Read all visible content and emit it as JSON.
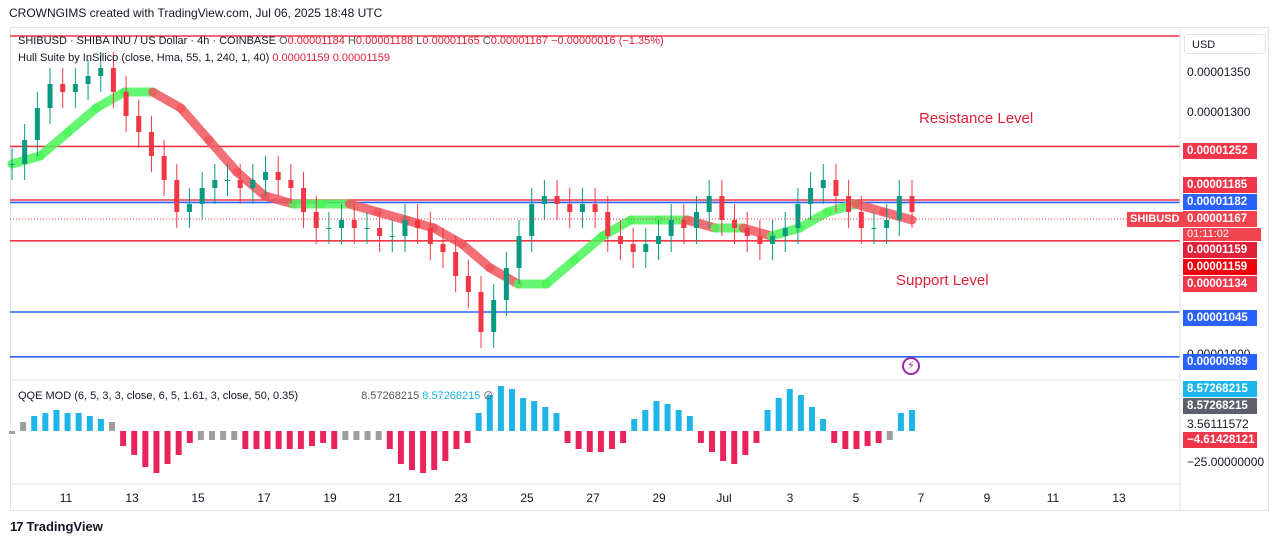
{
  "header": {
    "caption": "CROWNGIMS created with TradingView.com, Jul 06, 2025 18:48 UTC"
  },
  "legend": {
    "symbol": "SHIBUSD · SHIBA INU / US Dollar · 4h · COINBASE",
    "o_label": "O",
    "o_value": "0.00001184",
    "h_label": "H",
    "h_value": "0.00001188",
    "l_label": "L",
    "l_value": "0.00001165",
    "c_label": "C",
    "c_value": "0.00001167",
    "change": "−0.00000016 (−1.35%)",
    "hull_name": "Hull Suite by InSilico (close, Hma, 55, 1, 240, 1, 40)",
    "hull_v1": "0.00001159",
    "hull_v2": "0.00001159",
    "qqe_name": "QQE MOD (6, 5, 3, 3, close, 6, 5, 1.61, 3, close, 50, 0.35)",
    "qqe_v1": "8.57268215",
    "qqe_v2": "8.57268215",
    "qqe_v3": "∅"
  },
  "annotations": {
    "resistance": "Resistance Level",
    "support": "Support Level"
  },
  "axis": {
    "currency": "USD",
    "price_ticks": [
      "0.00001350",
      "0.00001300",
      "0.00001000"
    ],
    "qqe_ticks": [
      "3.56111572",
      "−25.00000000"
    ],
    "x_ticks": [
      "11",
      "13",
      "15",
      "17",
      "19",
      "21",
      "23",
      "25",
      "27",
      "29",
      "Jul",
      "3",
      "5",
      "7",
      "9",
      "11",
      "13"
    ]
  },
  "price_tags": [
    {
      "value": "0.00001252",
      "color": "#f2364a"
    },
    {
      "value": "0.00001185",
      "color": "#f2364a"
    },
    {
      "value": "0.00001182",
      "color": "#2962ff"
    },
    {
      "value": "0.00001167",
      "color": "#f2434f"
    },
    {
      "value": "0.00001159",
      "color": "#e0213a"
    },
    {
      "value": "0.00001159",
      "color": "#f2000f"
    },
    {
      "value": "0.00001134",
      "color": "#f2364a"
    },
    {
      "value": "0.00001045",
      "color": "#2962ff"
    },
    {
      "value": "0.00000989",
      "color": "#2962ff"
    }
  ],
  "qqe_tags": [
    {
      "value": "8.57268215",
      "color": "#1eb6e8"
    },
    {
      "value": "8.57268215",
      "color": "#5d606b"
    },
    {
      "value": "−4.61428121",
      "color": "#f2364a"
    }
  ],
  "symbol_tag": {
    "label": "SHIBUSD",
    "countdown": "01:11:02"
  },
  "footer": {
    "brand": "TradingView"
  },
  "chart_data": {
    "type": "candlestick",
    "title": "SHIBUSD · SHIBA INU / US Dollar · 4h · COINBASE",
    "ylim": [
      9.6e-06,
      1.4e-05
    ],
    "horizontal_levels": [
      {
        "name": "resistance-top",
        "value": 1.39e-05,
        "color": "#f23645"
      },
      {
        "name": "resistance-1",
        "value": 1.252e-05,
        "color": "#f23645"
      },
      {
        "name": "resistance-2",
        "value": 1.185e-05,
        "color": "#f23645"
      },
      {
        "name": "mid-blue",
        "value": 1.182e-05,
        "color": "#2962ff"
      },
      {
        "name": "support-1",
        "value": 1.134e-05,
        "color": "#f23645"
      },
      {
        "name": "support-2",
        "value": 1.045e-05,
        "color": "#2962ff"
      },
      {
        "name": "support-3",
        "value": 9.89e-06,
        "color": "#2962ff"
      }
    ],
    "close_path": [
      1.23e-05,
      1.26e-05,
      1.3e-05,
      1.33e-05,
      1.32e-05,
      1.33e-05,
      1.34e-05,
      1.35e-05,
      1.32e-05,
      1.29e-05,
      1.27e-05,
      1.24e-05,
      1.21e-05,
      1.17e-05,
      1.18e-05,
      1.2e-05,
      1.21e-05,
      1.21e-05,
      1.2e-05,
      1.21e-05,
      1.22e-05,
      1.21e-05,
      1.2e-05,
      1.17e-05,
      1.15e-05,
      1.15e-05,
      1.16e-05,
      1.15e-05,
      1.15e-05,
      1.14e-05,
      1.14e-05,
      1.16e-05,
      1.15e-05,
      1.13e-05,
      1.12e-05,
      1.09e-05,
      1.07e-05,
      1.02e-05,
      1.06e-05,
      1.1e-05,
      1.14e-05,
      1.18e-05,
      1.19e-05,
      1.18e-05,
      1.17e-05,
      1.18e-05,
      1.17e-05,
      1.14e-05,
      1.13e-05,
      1.12e-05,
      1.13e-05,
      1.14e-05,
      1.16e-05,
      1.15e-05,
      1.17e-05,
      1.19e-05,
      1.16e-05,
      1.15e-05,
      1.14e-05,
      1.13e-05,
      1.14e-05,
      1.15e-05,
      1.18e-05,
      1.2e-05,
      1.21e-05,
      1.19e-05,
      1.17e-05,
      1.15e-05,
      1.15e-05,
      1.16e-05,
      1.19e-05,
      1.17e-05
    ],
    "hull_path": [
      1.23e-05,
      1.24e-05,
      1.27e-05,
      1.3e-05,
      1.32e-05,
      1.32e-05,
      1.3e-05,
      1.26e-05,
      1.22e-05,
      1.19e-05,
      1.18e-05,
      1.18e-05,
      1.18e-05,
      1.17e-05,
      1.16e-05,
      1.15e-05,
      1.13e-05,
      1.1e-05,
      1.08e-05,
      1.08e-05,
      1.11e-05,
      1.14e-05,
      1.16e-05,
      1.16e-05,
      1.16e-05,
      1.15e-05,
      1.15e-05,
      1.14e-05,
      1.15e-05,
      1.17e-05,
      1.18e-05,
      1.17e-05,
      1.16e-05
    ],
    "qqe_histogram": [
      -1,
      3,
      5,
      6,
      7,
      6,
      6,
      5,
      4,
      3,
      -5,
      -8,
      -12,
      -14,
      -11,
      -8,
      -4,
      -3,
      -3,
      -3,
      -3,
      -6,
      -6,
      -6,
      -6,
      -6,
      -6,
      -5,
      -4,
      -6,
      -3,
      -3,
      -3,
      -3,
      -6,
      -11,
      -13,
      -14,
      -13,
      -10,
      -6,
      -4,
      6,
      12,
      15,
      14,
      11,
      10,
      8,
      6,
      -4,
      -6,
      -7,
      -7,
      -6,
      -4,
      4,
      7,
      10,
      9,
      7,
      5,
      -4,
      -7,
      -10,
      -11,
      -8,
      -4,
      7,
      11,
      14,
      12,
      8,
      4,
      -4,
      -6,
      -6,
      -5,
      -4,
      -3,
      6,
      7
    ]
  }
}
